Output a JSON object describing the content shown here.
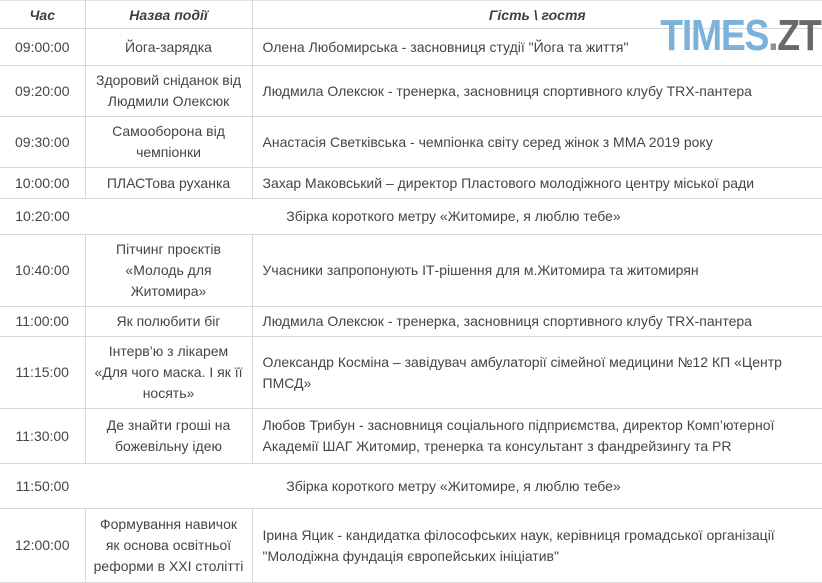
{
  "logo": {
    "text_blue": "TIMES",
    "text_dot": ".",
    "text_gray": "ZT",
    "blue_color": "#7ab2dc",
    "dot_color": "#8f8f8f",
    "gray_color": "#696969"
  },
  "table": {
    "headers": [
      "Час",
      "Назва події",
      "Гість \\ гостя"
    ],
    "rows": [
      {
        "time": "09:00:00",
        "event": "Йога-зарядка",
        "guest": "Олена Любомирська - засновниця студії \"Йога та життя\"",
        "merged": false
      },
      {
        "time": "09:20:00",
        "event": "Здоровий сніданок від\nЛюдмили Олексюк",
        "guest": "Людмила Олексюк - тренерка, засновниця спортивного клубу TRX-пантера",
        "merged": false
      },
      {
        "time": "09:30:00",
        "event": "Самооборона від\nчемпіонки",
        "guest": "Анастасія Светківська - чемпіонка світу серед жінок з MMA 2019 року",
        "merged": false
      },
      {
        "time": "10:00:00",
        "event": "ПЛАСТова руханка",
        "guest": "Захар Маковський – директор Пластового молодіжного центру міської ради",
        "merged": false
      },
      {
        "time": "10:20:00",
        "event": "",
        "guest": "Збірка короткого метру «Житомире, я люблю тебе»",
        "merged": true
      },
      {
        "time": "10:40:00",
        "event": "Пітчинг проєктів\n«Молодь для\nЖитомира»",
        "guest": "Учасники запропонують ІТ-рішення для м.Житомира та житомирян",
        "merged": false
      },
      {
        "time": "11:00:00",
        "event": "Як полюбити біг",
        "guest": "Людмила Олексюк - тренерка, засновниця спортивного клубу TRX-пантера",
        "merged": false
      },
      {
        "time": "11:15:00",
        "event": "Інтерв’ю з лікарем\n«Для чого маска. І як її\nносять»",
        "guest": "Олександр Косміна – завідувач амбулаторії сімейної медицини №12 КП «Центр ПМСД»",
        "merged": false
      },
      {
        "time": "11:30:00",
        "event": "Де знайти гроші на\nбожевільну ідею",
        "guest": "Любов Трибун - засновниця соціального підприємства, директор Комп’ютерної Академії ШАГ Житомир, тренерка та консультант з фандрейзингу та PR",
        "merged": false
      },
      {
        "time": "11:50:00",
        "event": "",
        "guest": "Збірка короткого метру «Житомире, я люблю тебе»",
        "merged": true
      },
      {
        "time": "12:00:00",
        "event": "Формування навичок\nяк основа освітньої\nреформи в XXI столітті",
        "guest": "Ірина Яцик - кандидатка філософських наук, керівниця громадської організації \"Молодіжна фундація європейських ініціатив\"",
        "merged": false
      }
    ]
  }
}
